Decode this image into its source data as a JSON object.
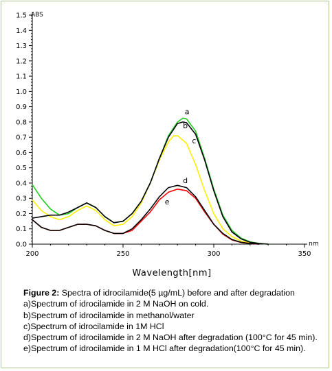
{
  "chart_data": {
    "type": "line",
    "ylabel": "ABS",
    "xunit": "nm",
    "xlabel": "Wavelength[nm]",
    "xlim": [
      200,
      350
    ],
    "ylim": [
      0,
      1.5
    ],
    "xticks": [
      "200",
      "250",
      "300",
      "350"
    ],
    "yticks": [
      "0.0",
      "0.1",
      "0.2",
      "0.3",
      "0.4",
      "0.5",
      "0.6",
      "0.7",
      "0.8",
      "0.9",
      "1.0",
      "1.1",
      "1.2",
      "1.3",
      "1.4",
      "1.5"
    ],
    "grid": false,
    "series": [
      {
        "name": "a",
        "color": "#22cc22",
        "label_at": [
          284,
          0.85
        ],
        "x": [
          200,
          205,
          210,
          215,
          220,
          225,
          230,
          235,
          240,
          245,
          250,
          255,
          260,
          265,
          270,
          275,
          280,
          283,
          285,
          290,
          295,
          300,
          305,
          310,
          315,
          320,
          325,
          330
        ],
        "y": [
          0.39,
          0.3,
          0.23,
          0.19,
          0.2,
          0.24,
          0.27,
          0.24,
          0.18,
          0.14,
          0.15,
          0.2,
          0.28,
          0.4,
          0.56,
          0.71,
          0.8,
          0.825,
          0.82,
          0.74,
          0.56,
          0.36,
          0.19,
          0.09,
          0.04,
          0.015,
          0.005,
          0.0
        ]
      },
      {
        "name": "b",
        "color": "#000000",
        "label_at": [
          283,
          0.76
        ],
        "x": [
          200,
          205,
          210,
          215,
          220,
          225,
          230,
          235,
          240,
          245,
          250,
          255,
          260,
          265,
          270,
          275,
          280,
          283,
          285,
          290,
          295,
          300,
          305,
          310,
          315,
          320,
          325,
          330
        ],
        "y": [
          0.17,
          0.18,
          0.19,
          0.19,
          0.21,
          0.24,
          0.27,
          0.24,
          0.18,
          0.14,
          0.15,
          0.2,
          0.28,
          0.4,
          0.56,
          0.7,
          0.79,
          0.8,
          0.795,
          0.72,
          0.55,
          0.35,
          0.18,
          0.08,
          0.035,
          0.012,
          0.004,
          0.0
        ]
      },
      {
        "name": "c",
        "color": "#ffee00",
        "label_at": [
          288,
          0.66
        ],
        "x": [
          200,
          205,
          210,
          215,
          220,
          225,
          230,
          235,
          240,
          245,
          250,
          255,
          260,
          265,
          270,
          275,
          278,
          280,
          285,
          290,
          295,
          300,
          305,
          310,
          315,
          320,
          325
        ],
        "y": [
          0.29,
          0.22,
          0.18,
          0.16,
          0.18,
          0.22,
          0.25,
          0.22,
          0.16,
          0.12,
          0.13,
          0.18,
          0.27,
          0.4,
          0.55,
          0.67,
          0.71,
          0.71,
          0.66,
          0.52,
          0.35,
          0.2,
          0.1,
          0.05,
          0.02,
          0.008,
          0.0
        ]
      },
      {
        "name": "d",
        "color": "#000000",
        "label_at": [
          283,
          0.4
        ],
        "x": [
          200,
          205,
          210,
          215,
          220,
          225,
          230,
          235,
          240,
          245,
          250,
          255,
          260,
          265,
          270,
          275,
          280,
          285,
          290,
          295,
          300,
          305,
          310,
          315,
          320,
          325
        ],
        "y": [
          0.16,
          0.11,
          0.09,
          0.09,
          0.11,
          0.13,
          0.13,
          0.12,
          0.09,
          0.07,
          0.07,
          0.1,
          0.16,
          0.23,
          0.31,
          0.37,
          0.385,
          0.37,
          0.31,
          0.22,
          0.13,
          0.07,
          0.03,
          0.012,
          0.004,
          0.0
        ]
      },
      {
        "name": "e",
        "color": "#ff0000",
        "label_at": [
          273,
          0.26
        ],
        "x": [
          200,
          205,
          210,
          215,
          220,
          225,
          230,
          235,
          240,
          245,
          250,
          255,
          260,
          265,
          270,
          275,
          280,
          285,
          290,
          295,
          300,
          305,
          310,
          315,
          320,
          325
        ],
        "y": [
          0.16,
          0.11,
          0.09,
          0.09,
          0.11,
          0.13,
          0.13,
          0.12,
          0.09,
          0.07,
          0.07,
          0.09,
          0.15,
          0.21,
          0.29,
          0.34,
          0.36,
          0.35,
          0.3,
          0.21,
          0.13,
          0.065,
          0.028,
          0.011,
          0.004,
          0.0
        ]
      }
    ]
  },
  "caption": {
    "figure_label": "Figure 2:",
    "title": "Spectra of idrocilamide(5 µg/mL) before and after degradation",
    "lines": [
      "a)Spectrum of idrocilamide in 2 M NaOH on cold.",
      "b)Spectrum of idrocilamide in methanol/water",
      "c)Spectrum of idrocilamide in 1M HCl",
      "d)Spectrum of idrocilamide in 2 M NaOH after degradation (100°C for 45 min).",
      "e)Spectrum of idrocilamide in 1 M HCl after degradation(100°C for 45 min)."
    ]
  }
}
